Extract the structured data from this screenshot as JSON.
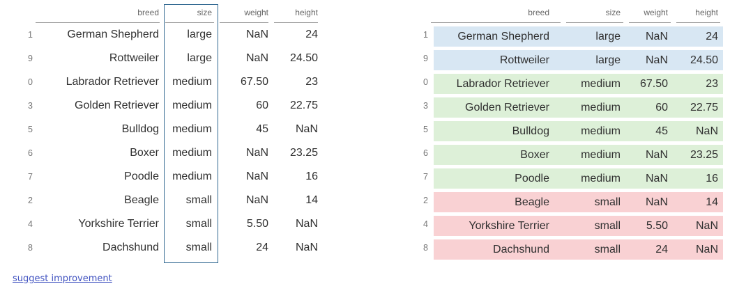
{
  "table": {
    "columns": [
      "breed",
      "size",
      "weight",
      "height"
    ],
    "rows": [
      {
        "index": "1",
        "breed": "German Shepherd",
        "size": "large",
        "weight": "NaN",
        "height": "24"
      },
      {
        "index": "9",
        "breed": "Rottweiler",
        "size": "large",
        "weight": "NaN",
        "height": "24.50"
      },
      {
        "index": "0",
        "breed": "Labrador Retriever",
        "size": "medium",
        "weight": "67.50",
        "height": "23"
      },
      {
        "index": "3",
        "breed": "Golden Retriever",
        "size": "medium",
        "weight": "60",
        "height": "22.75"
      },
      {
        "index": "5",
        "breed": "Bulldog",
        "size": "medium",
        "weight": "45",
        "height": "NaN"
      },
      {
        "index": "6",
        "breed": "Boxer",
        "size": "medium",
        "weight": "NaN",
        "height": "23.25"
      },
      {
        "index": "7",
        "breed": "Poodle",
        "size": "medium",
        "weight": "NaN",
        "height": "16"
      },
      {
        "index": "2",
        "breed": "Beagle",
        "size": "small",
        "weight": "NaN",
        "height": "14"
      },
      {
        "index": "4",
        "breed": "Yorkshire Terrier",
        "size": "small",
        "weight": "5.50",
        "height": "NaN"
      },
      {
        "index": "8",
        "breed": "Dachshund",
        "size": "small",
        "weight": "24",
        "height": "NaN"
      }
    ]
  },
  "highlight": {
    "column": "size",
    "box_border_color": "#2f6790"
  },
  "row_colors": {
    "large": "#d8e7f3",
    "medium": "#ddf0d8",
    "small": "#f9d1d3"
  },
  "header_underline_color": "#9a9a9a",
  "link": {
    "label": "suggest improvement",
    "color": "#4052c0"
  }
}
